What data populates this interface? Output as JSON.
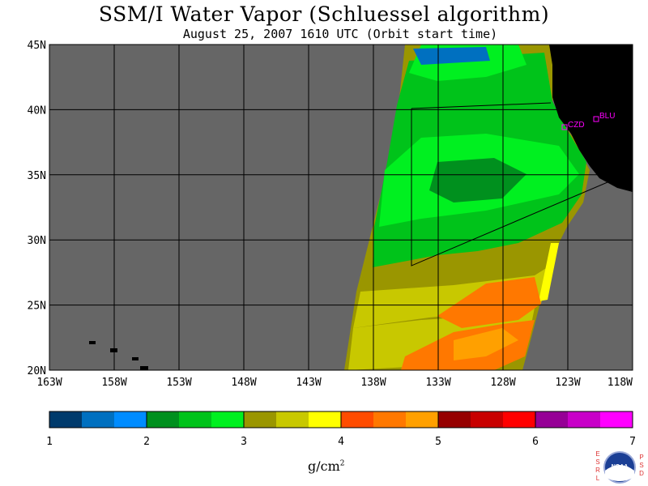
{
  "header": {
    "title": "SSM/I Water Vapor (Schluessel algorithm)",
    "subtitle": "August 25, 2007  1610 UTC  (Orbit start time)"
  },
  "map": {
    "lat_labels": [
      "45N",
      "40N",
      "35N",
      "30N",
      "25N",
      "20N"
    ],
    "lon_labels": [
      "163W",
      "158W",
      "153W",
      "148W",
      "143W",
      "138W",
      "133W",
      "128W",
      "123W",
      "118W"
    ],
    "stations": [
      {
        "id": "CZD",
        "label": "CZD"
      },
      {
        "id": "BLU",
        "label": "BLU"
      }
    ],
    "colors": {
      "no_data": "#666666",
      "land": "#000000"
    }
  },
  "colorbar": {
    "ticks": [
      "1",
      "2",
      "3",
      "4",
      "5",
      "6",
      "7"
    ],
    "units": "g/cm",
    "units_exp": "2",
    "colors": [
      "#003a6c",
      "#0070c0",
      "#008cff",
      "#00901e",
      "#00c31a",
      "#00f020",
      "#9a9600",
      "#c8c800",
      "#ffff00",
      "#ff4c00",
      "#ff7800",
      "#ffa000",
      "#960000",
      "#c80000",
      "#ff0000",
      "#960096",
      "#c800c8",
      "#ff00ff"
    ]
  },
  "logo": {
    "left_letters": [
      "E",
      "S",
      "R",
      "L"
    ],
    "right_letters": [
      "P",
      "S",
      "D"
    ],
    "badge": "NOAA"
  }
}
